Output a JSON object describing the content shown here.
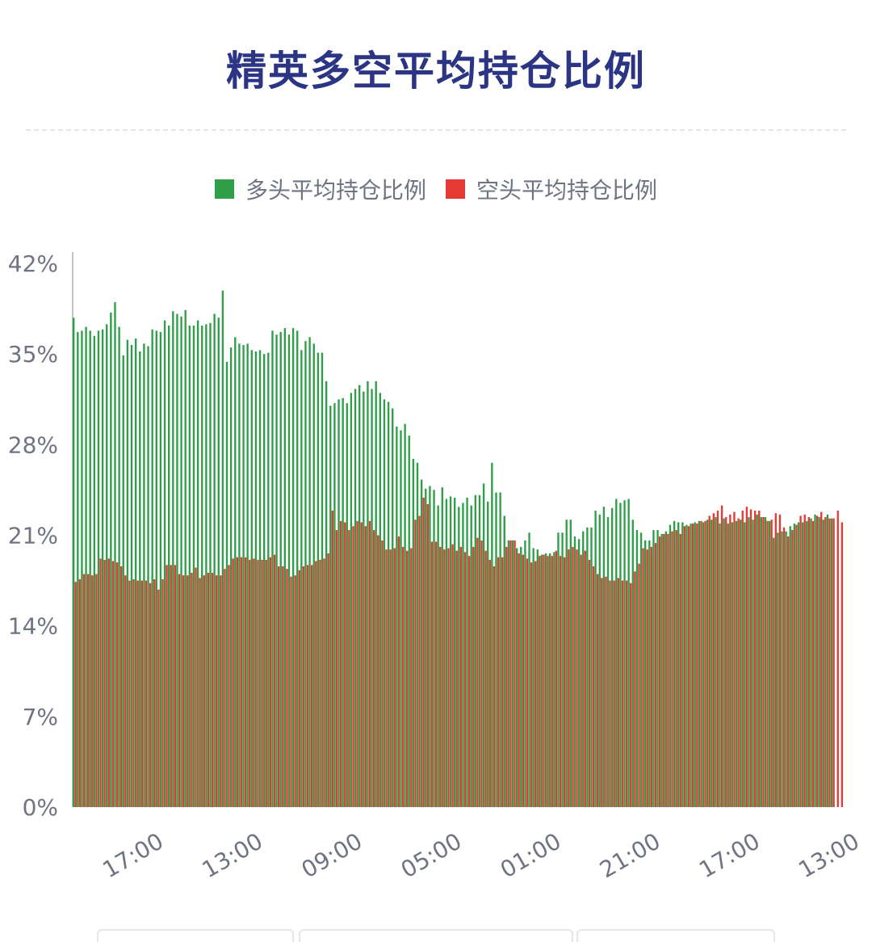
{
  "title": "精英多空平均持仓比例",
  "legend": [
    {
      "label": "多头平均持仓比例",
      "color": "#2e9e48"
    },
    {
      "label": "空头平均持仓比例",
      "color": "#e53a34"
    }
  ],
  "chart_data": {
    "type": "bar",
    "stacked": false,
    "ylim": [
      0,
      43
    ],
    "yticks": [
      "0%",
      "7%",
      "14%",
      "21%",
      "28%",
      "35%",
      "42%"
    ],
    "ytick_values": [
      0,
      7,
      14,
      21,
      28,
      35,
      42
    ],
    "xticks": [
      "17:00",
      "13:00",
      "09:00",
      "05:00",
      "01:00",
      "21:00",
      "17:00",
      "13:00"
    ],
    "xtick_index": [
      14,
      38,
      62,
      86,
      110,
      134,
      158,
      182
    ],
    "series": [
      {
        "name": "多头平均持仓比例",
        "color": "#2e9e48",
        "values": [
          37.8,
          36.7,
          36.8,
          37.1,
          36.8,
          36.4,
          36.8,
          36.9,
          37.3,
          38.2,
          39.0,
          37.1,
          34.9,
          36.1,
          35.7,
          36.2,
          35.2,
          35.8,
          35.6,
          36.9,
          36.8,
          36.7,
          37.6,
          37.2,
          38.3,
          38.1,
          37.9,
          38.4,
          37.2,
          37.2,
          37.6,
          37.2,
          37.3,
          37.4,
          38.1,
          37.8,
          39.9,
          34.4,
          35.5,
          36.3,
          35.8,
          35.7,
          35.8,
          35.3,
          35.2,
          35.3,
          35.0,
          35.1,
          36.8,
          36.5,
          36.7,
          37.0,
          36.5,
          37.0,
          36.8,
          35.3,
          36.0,
          36.3,
          35.8,
          35.1,
          35.1,
          32.9,
          31.0,
          31.2,
          31.5,
          31.6,
          31.2,
          32.0,
          32.3,
          32.6,
          32.1,
          32.9,
          32.3,
          32.9,
          32.0,
          31.5,
          31.3,
          30.8,
          29.4,
          29.1,
          29.6,
          28.7,
          26.9,
          26.6,
          25.3,
          24.6,
          24.8,
          24.5,
          23.3,
          24.7,
          23.8,
          24.0,
          23.9,
          23.2,
          23.5,
          23.9,
          23.3,
          24.1,
          24.1,
          25.0,
          23.6,
          26.6,
          24.3,
          24.3,
          22.5,
          20.6,
          20.6,
          20.0,
          20.1,
          20.6,
          21.2,
          20.0,
          19.9,
          19.5,
          19.6,
          19.6,
          19.7,
          21.2,
          21.2,
          22.2,
          22.2,
          20.9,
          20.7,
          21.3,
          21.6,
          21.6,
          22.9,
          22.6,
          23.2,
          22.4,
          23.1,
          23.8,
          23.5,
          23.7,
          23.8,
          22.2,
          21.4,
          21.2,
          20.6,
          20.6,
          21.4,
          21.4,
          21.1,
          21.3,
          21.8,
          22.1,
          22.0,
          22.0,
          21.8,
          21.9,
          22.0,
          22.1,
          22.0,
          22.2,
          22.2,
          22.4,
          21.9,
          22.3,
          21.9,
          22.0,
          22.1,
          22.2,
          22.0,
          22.4,
          22.2,
          22.6,
          22.4,
          22.4,
          22.1,
          20.8,
          21.2,
          21.3,
          21.3,
          21.7,
          21.9,
          22.0,
          22.0,
          22.1,
          22.3,
          22.6,
          22.4,
          22.2,
          22.6,
          22.3
        ]
      },
      {
        "name": "空头平均持仓比例",
        "color": "#e53a34",
        "values": [
          17.4,
          17.6,
          18.0,
          18.0,
          17.9,
          18.0,
          19.2,
          19.1,
          19.2,
          19.0,
          18.9,
          18.6,
          17.9,
          17.5,
          17.6,
          17.5,
          17.5,
          17.5,
          17.3,
          17.6,
          16.8,
          17.6,
          18.7,
          18.7,
          18.7,
          18.0,
          17.9,
          17.9,
          18.1,
          18.5,
          17.7,
          17.9,
          18.1,
          18.1,
          17.9,
          17.9,
          18.4,
          18.7,
          19.2,
          19.3,
          19.3,
          19.3,
          19.1,
          19.2,
          19.1,
          19.1,
          19.1,
          19.3,
          19.5,
          18.6,
          18.6,
          18.4,
          17.8,
          17.9,
          18.3,
          18.6,
          18.7,
          18.7,
          19.0,
          19.1,
          19.2,
          19.6,
          22.9,
          21.4,
          22.1,
          22.0,
          21.4,
          21.7,
          22.1,
          22.0,
          21.7,
          22.1,
          21.4,
          21.0,
          20.6,
          19.9,
          19.9,
          20.0,
          20.9,
          20.1,
          19.8,
          20.0,
          22.2,
          22.5,
          23.9,
          23.4,
          20.5,
          20.5,
          20.1,
          19.9,
          20.0,
          20.3,
          19.8,
          20.1,
          19.7,
          19.4,
          20.1,
          20.8,
          20.6,
          19.8,
          19.1,
          18.6,
          19.3,
          19.3,
          20.1,
          20.6,
          20.6,
          19.6,
          19.5,
          19.2,
          18.9,
          19.0,
          19.4,
          19.5,
          19.4,
          19.4,
          19.8,
          19.4,
          19.3,
          19.9,
          20.1,
          19.9,
          19.5,
          19.8,
          19.1,
          18.6,
          18.0,
          17.7,
          17.8,
          17.5,
          17.5,
          17.7,
          17.5,
          17.5,
          17.3,
          18.2,
          18.8,
          20.0,
          19.9,
          20.1,
          20.4,
          20.9,
          21.1,
          21.1,
          21.3,
          21.4,
          21.1,
          21.7,
          21.7,
          21.9,
          21.9,
          22.1,
          22.1,
          22.5,
          22.7,
          22.9,
          23.3,
          22.4,
          22.6,
          22.8,
          22.3,
          22.9,
          23.2,
          23.0,
          22.9,
          22.9,
          22.4,
          22.1,
          22.2,
          22.7,
          22.6,
          21.6,
          20.9,
          21.4,
          21.8,
          22.5,
          22.6,
          22.4,
          22.1,
          22.5,
          22.8,
          22.4,
          22.3,
          22.3,
          22.9,
          22.0
        ]
      }
    ]
  }
}
